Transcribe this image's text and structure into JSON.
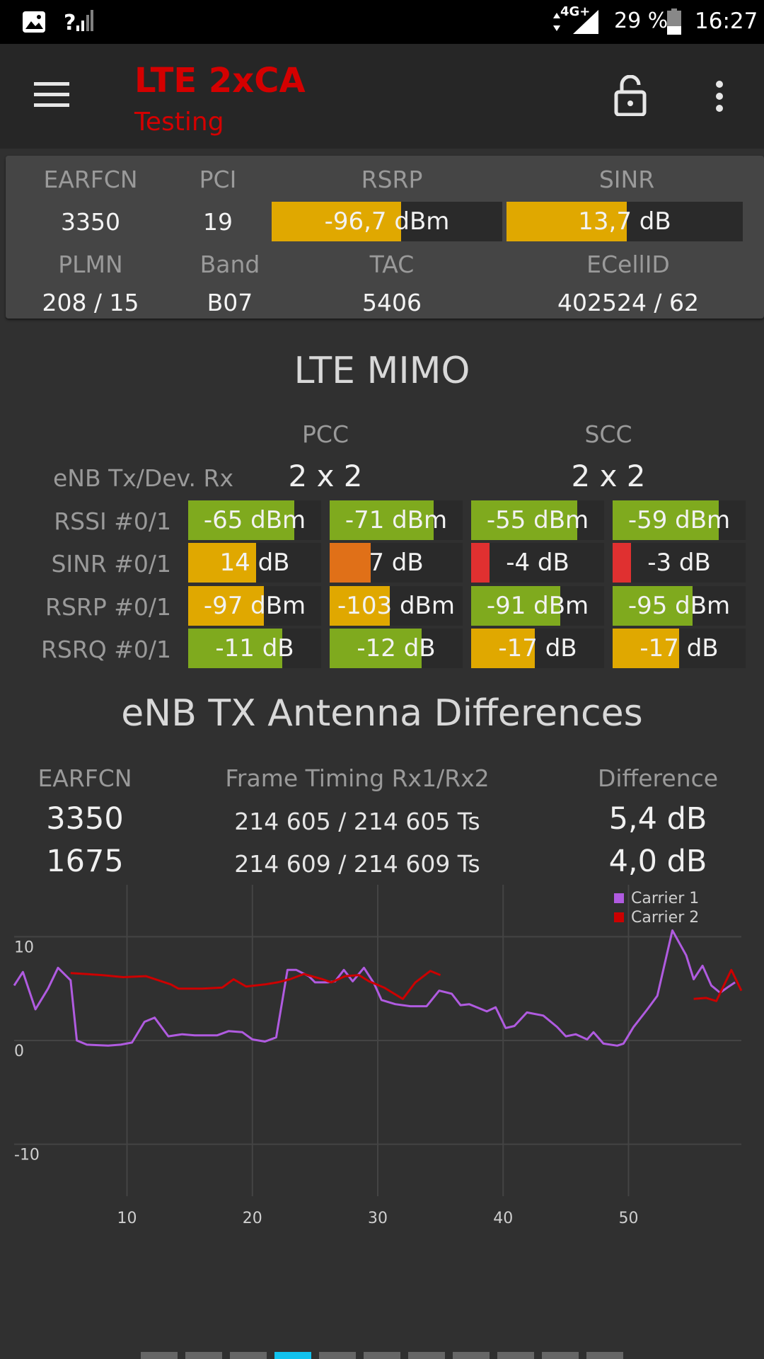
{
  "status_bar": {
    "network": "4G+",
    "battery": "29 %",
    "time": "16:27",
    "icons": [
      "image-icon",
      "signal-unknown-icon",
      "data-arrows-icon",
      "signal-icon",
      "battery-icon"
    ]
  },
  "toolbar": {
    "title": "LTE 2xCA",
    "subtitle": "Testing",
    "icons": [
      "menu-icon",
      "lock-icon",
      "more-vert-icon"
    ]
  },
  "cell": {
    "headers": {
      "earfcn": "EARFCN",
      "pci": "PCI",
      "rsrp": "RSRP",
      "sinr": "SINR",
      "plmn": "PLMN",
      "band": "Band",
      "tac": "TAC",
      "ecellid": "ECellID"
    },
    "earfcn": "3350",
    "pci": "19",
    "rsrp": {
      "text": "-96,7 dBm",
      "fill": 0.56,
      "color": "#e0a800"
    },
    "sinr": {
      "text": "13,7 dB",
      "fill": 0.51,
      "color": "#e0a800"
    },
    "plmn": "208 / 15",
    "band": "B07",
    "tac": "5406",
    "ecellid": "402524 / 62"
  },
  "mimo": {
    "title": "LTE MIMO",
    "pcc_label": "PCC",
    "scc_label": "SCC",
    "config_label": "eNB Tx/Dev. Rx",
    "pcc_config": "2 x 2",
    "scc_config": "2 x 2",
    "rows": [
      {
        "label": "RSSI #0/1",
        "cells": [
          {
            "text": "-65 dBm",
            "fill": 0.8,
            "color": "#7faa1e"
          },
          {
            "text": "-71 dBm",
            "fill": 0.78,
            "color": "#7faa1e"
          },
          {
            "text": "-55 dBm",
            "fill": 0.8,
            "color": "#7faa1e"
          },
          {
            "text": "-59 dBm",
            "fill": 0.8,
            "color": "#7faa1e"
          }
        ]
      },
      {
        "label": "SINR #0/1",
        "cells": [
          {
            "text": "14 dB",
            "fill": 0.51,
            "color": "#e0a800"
          },
          {
            "text": "7 dB",
            "fill": 0.31,
            "color": "#e07018"
          },
          {
            "text": "-4 dB",
            "fill": 0.14,
            "color": "#e03030"
          },
          {
            "text": "-3 dB",
            "fill": 0.14,
            "color": "#e03030"
          }
        ]
      },
      {
        "label": "RSRP #0/1",
        "cells": [
          {
            "text": "-97 dBm",
            "fill": 0.57,
            "color": "#e0a800"
          },
          {
            "text": "-103 dBm",
            "fill": 0.45,
            "color": "#e0a800"
          },
          {
            "text": "-91 dBm",
            "fill": 0.67,
            "color": "#7faa1e"
          },
          {
            "text": "-95 dBm",
            "fill": 0.6,
            "color": "#7faa1e"
          }
        ]
      },
      {
        "label": "RSRQ #0/1",
        "cells": [
          {
            "text": "-11 dB",
            "fill": 0.71,
            "color": "#7faa1e"
          },
          {
            "text": "-12 dB",
            "fill": 0.69,
            "color": "#7faa1e"
          },
          {
            "text": "-17 dB",
            "fill": 0.48,
            "color": "#e0a800"
          },
          {
            "text": "-17 dB",
            "fill": 0.5,
            "color": "#e0a800"
          }
        ]
      }
    ]
  },
  "antenna": {
    "title": "eNB TX Antenna Differences",
    "headers": {
      "earfcn": "EARFCN",
      "timing": "Frame Timing Rx1/Rx2",
      "difference": "Difference"
    },
    "rows": [
      {
        "earfcn": "3350",
        "timing": "214 605 / 214 605 Ts",
        "difference": "5,4 dB"
      },
      {
        "earfcn": "1675",
        "timing": "214 609 / 214 609 Ts",
        "difference": "4,0 dB"
      }
    ]
  },
  "chart_data": {
    "type": "line",
    "xlim": [
      1,
      59
    ],
    "ylim": [
      -15,
      15
    ],
    "xticks": [
      10,
      20,
      30,
      40,
      50
    ],
    "yticks": [
      10,
      0,
      -10
    ],
    "grid": true,
    "legend_position": "top-right",
    "series": [
      {
        "name": "Carrier 1",
        "color": "#b05be0",
        "points": [
          [
            1,
            5.3
          ],
          [
            1.7,
            6.6
          ],
          [
            2.7,
            3
          ],
          [
            3.7,
            5
          ],
          [
            4.5,
            7
          ],
          [
            5.5,
            5.8
          ],
          [
            6,
            0
          ],
          [
            6.8,
            -0.4
          ],
          [
            8.5,
            -0.5
          ],
          [
            9.5,
            -0.4
          ],
          [
            10.4,
            -0.2
          ],
          [
            11.4,
            1.8
          ],
          [
            12.2,
            2.2
          ],
          [
            13.3,
            0.4
          ],
          [
            14.4,
            0.6
          ],
          [
            15.4,
            0.5
          ],
          [
            17.2,
            0.5
          ],
          [
            18.1,
            0.9
          ],
          [
            19.2,
            0.8
          ],
          [
            20,
            0.1
          ],
          [
            21,
            -0.1
          ],
          [
            21.9,
            0.3
          ],
          [
            22.8,
            6.8
          ],
          [
            23.5,
            6.8
          ],
          [
            24.5,
            6.2
          ],
          [
            25,
            5.6
          ],
          [
            26,
            5.6
          ],
          [
            26.6,
            5.7
          ],
          [
            27.3,
            6.8
          ],
          [
            28,
            5.7
          ],
          [
            28.9,
            7
          ],
          [
            29.7,
            5.5
          ],
          [
            30.3,
            3.9
          ],
          [
            31.4,
            3.5
          ],
          [
            32.6,
            3.3
          ],
          [
            33.9,
            3.3
          ],
          [
            34.9,
            4.8
          ],
          [
            35.9,
            4.5
          ],
          [
            36.6,
            3.4
          ],
          [
            37.3,
            3.5
          ],
          [
            38.7,
            2.8
          ],
          [
            39.4,
            3.2
          ],
          [
            40.2,
            1.2
          ],
          [
            40.9,
            1.4
          ],
          [
            41.9,
            2.7
          ],
          [
            43.2,
            2.4
          ],
          [
            44.3,
            1.3
          ],
          [
            45,
            0.4
          ],
          [
            45.8,
            0.6
          ],
          [
            46.7,
            0.1
          ],
          [
            47.2,
            0.8
          ],
          [
            48,
            -0.3
          ],
          [
            49.1,
            -0.5
          ],
          [
            49.6,
            -0.3
          ],
          [
            50.4,
            1.3
          ],
          [
            51.5,
            3
          ],
          [
            52.3,
            4.3
          ],
          [
            53.5,
            10.6
          ],
          [
            54.6,
            8.2
          ],
          [
            55.2,
            5.9
          ],
          [
            55.9,
            7.2
          ],
          [
            56.6,
            5.3
          ],
          [
            57.3,
            4.6
          ],
          [
            58,
            5.2
          ],
          [
            58.5,
            5.6
          ]
        ]
      },
      {
        "name": "Carrier 2",
        "color": "#cc0000",
        "points": [
          [
            [
              5.5,
              6.5
            ],
            [
              8,
              6.3
            ],
            [
              9.7,
              6.1
            ],
            [
              11.5,
              6.2
            ],
            [
              13.5,
              5.4
            ],
            [
              14.1,
              5
            ],
            [
              16,
              5
            ],
            [
              17.6,
              5.1
            ],
            [
              18.5,
              5.9
            ],
            [
              19.5,
              5.2
            ],
            [
              21,
              5.4
            ],
            [
              22,
              5.6
            ],
            [
              23,
              5.9
            ],
            [
              24.1,
              6.4
            ],
            [
              25.6,
              5.9
            ],
            [
              26.3,
              5.6
            ],
            [
              27.4,
              6.2
            ],
            [
              28.5,
              6.3
            ],
            [
              29.3,
              5.7
            ],
            [
              30.5,
              5.1
            ],
            [
              32,
              4
            ],
            [
              33,
              5.6
            ],
            [
              34.2,
              6.7
            ],
            [
              35,
              6.3
            ]
          ],
          [
            [
              55.2,
              4
            ],
            [
              56.2,
              4.1
            ],
            [
              57,
              3.8
            ],
            [
              58.2,
              6.8
            ],
            [
              59,
              4.8
            ]
          ]
        ]
      }
    ]
  },
  "pager": {
    "count": 11,
    "active": 3,
    "active_color": "#11c2ee",
    "inactive_color": "#666666"
  }
}
